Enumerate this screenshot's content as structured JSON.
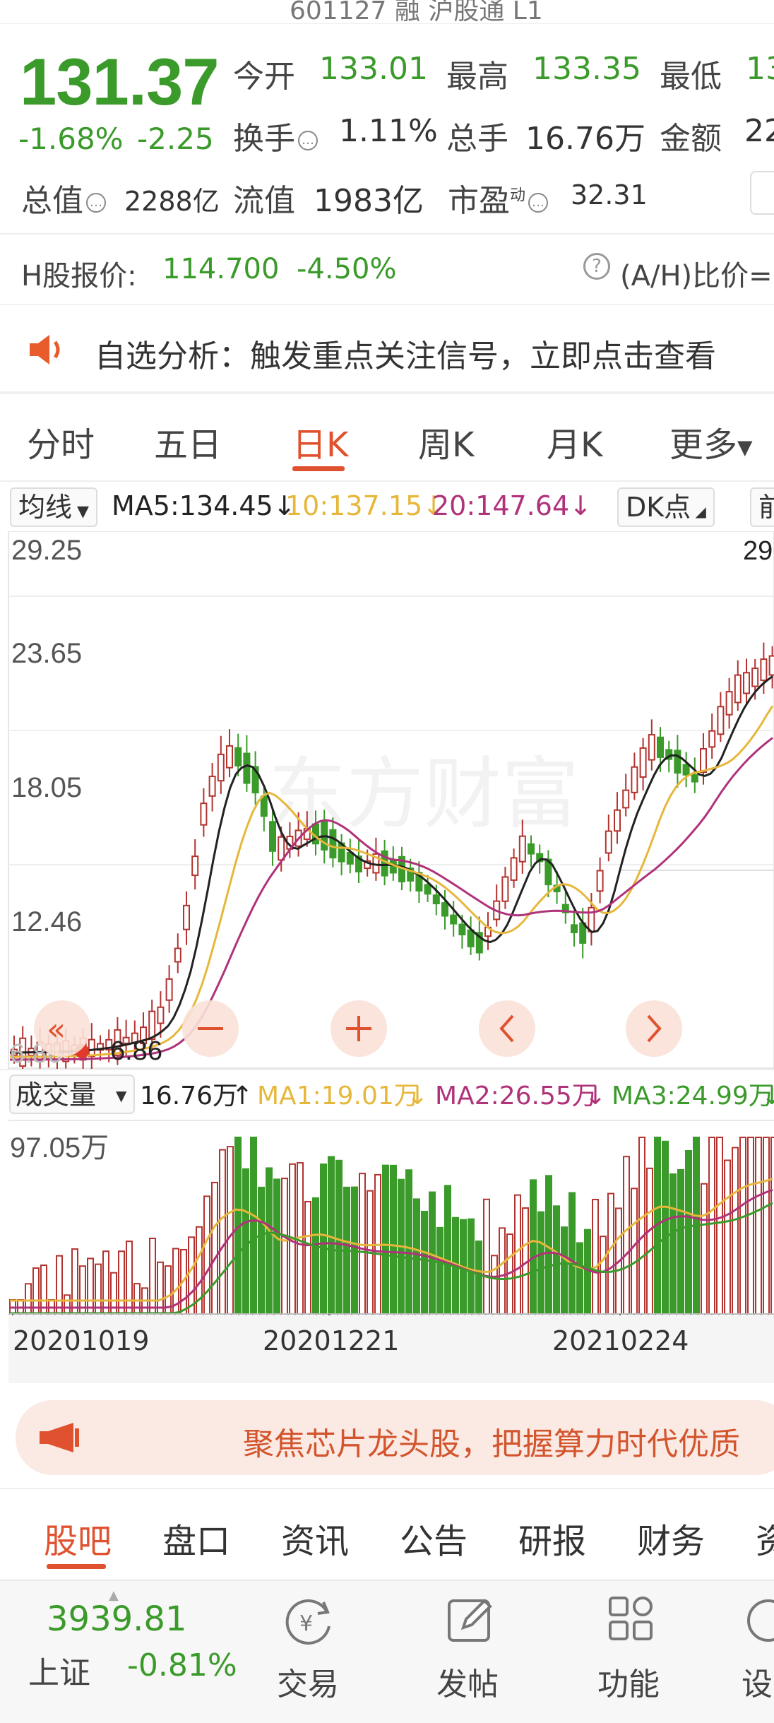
{
  "header": {
    "title": "601127 融 沪股通 L1"
  },
  "quote": {
    "price": "131.37",
    "change_pct": "-1.68%",
    "change_abs": "-2.25",
    "open_label": "今开",
    "open": "133.01",
    "high_label": "最高",
    "high": "133.35",
    "low_label": "最低",
    "low": "13",
    "turnover_label": "换手",
    "turnover": "1.11%",
    "volume_label": "总手",
    "volume": "16.76万",
    "amount_label": "金额",
    "amount": "22",
    "mktcap_label": "总值",
    "mktcap": "2288亿",
    "float_label": "流值",
    "float": "1983亿",
    "pe_label": "市盈",
    "pe_sup": "动",
    "pe": "32.31"
  },
  "hshare": {
    "label": "H股报价:",
    "price": "114.700",
    "change": "-4.50%",
    "ratio_label": "(A/H)比价="
  },
  "notice": {
    "text": "自选分析：触发重点关注信号，立即点击查看"
  },
  "tabs": [
    {
      "label": "分时"
    },
    {
      "label": "五日"
    },
    {
      "label": "日K",
      "active": true
    },
    {
      "label": "周K"
    },
    {
      "label": "月K"
    },
    {
      "label": "更多"
    }
  ],
  "ma_bar": {
    "selector": "均线",
    "ma5": "MA5:134.45",
    "ma10": "10:137.15",
    "ma20": "20:147.64",
    "dk": "DK点",
    "right": "前"
  },
  "colors": {
    "up": "#b2332f",
    "down": "#3a9a2a",
    "ma5": "#222222",
    "ma10": "#e6b73a",
    "ma20": "#b0327a",
    "accent": "#e0522f"
  },
  "kline": {
    "y_ticks": [
      "29.25",
      "23.65",
      "18.05",
      "12.46"
    ],
    "top_right": "29",
    "low_marker": "6.86",
    "low_axis": "6.86",
    "watermark": "东方财富"
  },
  "vol_bar": {
    "selector": "成交量",
    "value": "16.76万",
    "ma1": "MA1:19.01万",
    "ma2": "MA2:26.55万",
    "ma3": "MA3:24.99万",
    "y_max": "97.05万"
  },
  "dates": [
    "20201019",
    "20201221",
    "20210224"
  ],
  "ad": {
    "text": "聚焦芯片龙头股，把握算力时代优质"
  },
  "subtabs": [
    {
      "label": "股吧",
      "active": true
    },
    {
      "label": "盘口"
    },
    {
      "label": "资讯"
    },
    {
      "label": "公告"
    },
    {
      "label": "研报"
    },
    {
      "label": "财务"
    },
    {
      "label": "资"
    }
  ],
  "bottom": {
    "index_value": "3939.81",
    "index_name": "上证",
    "index_change": "-0.81%",
    "trade": "交易",
    "post": "发帖",
    "func": "功能",
    "settings": "设"
  }
}
